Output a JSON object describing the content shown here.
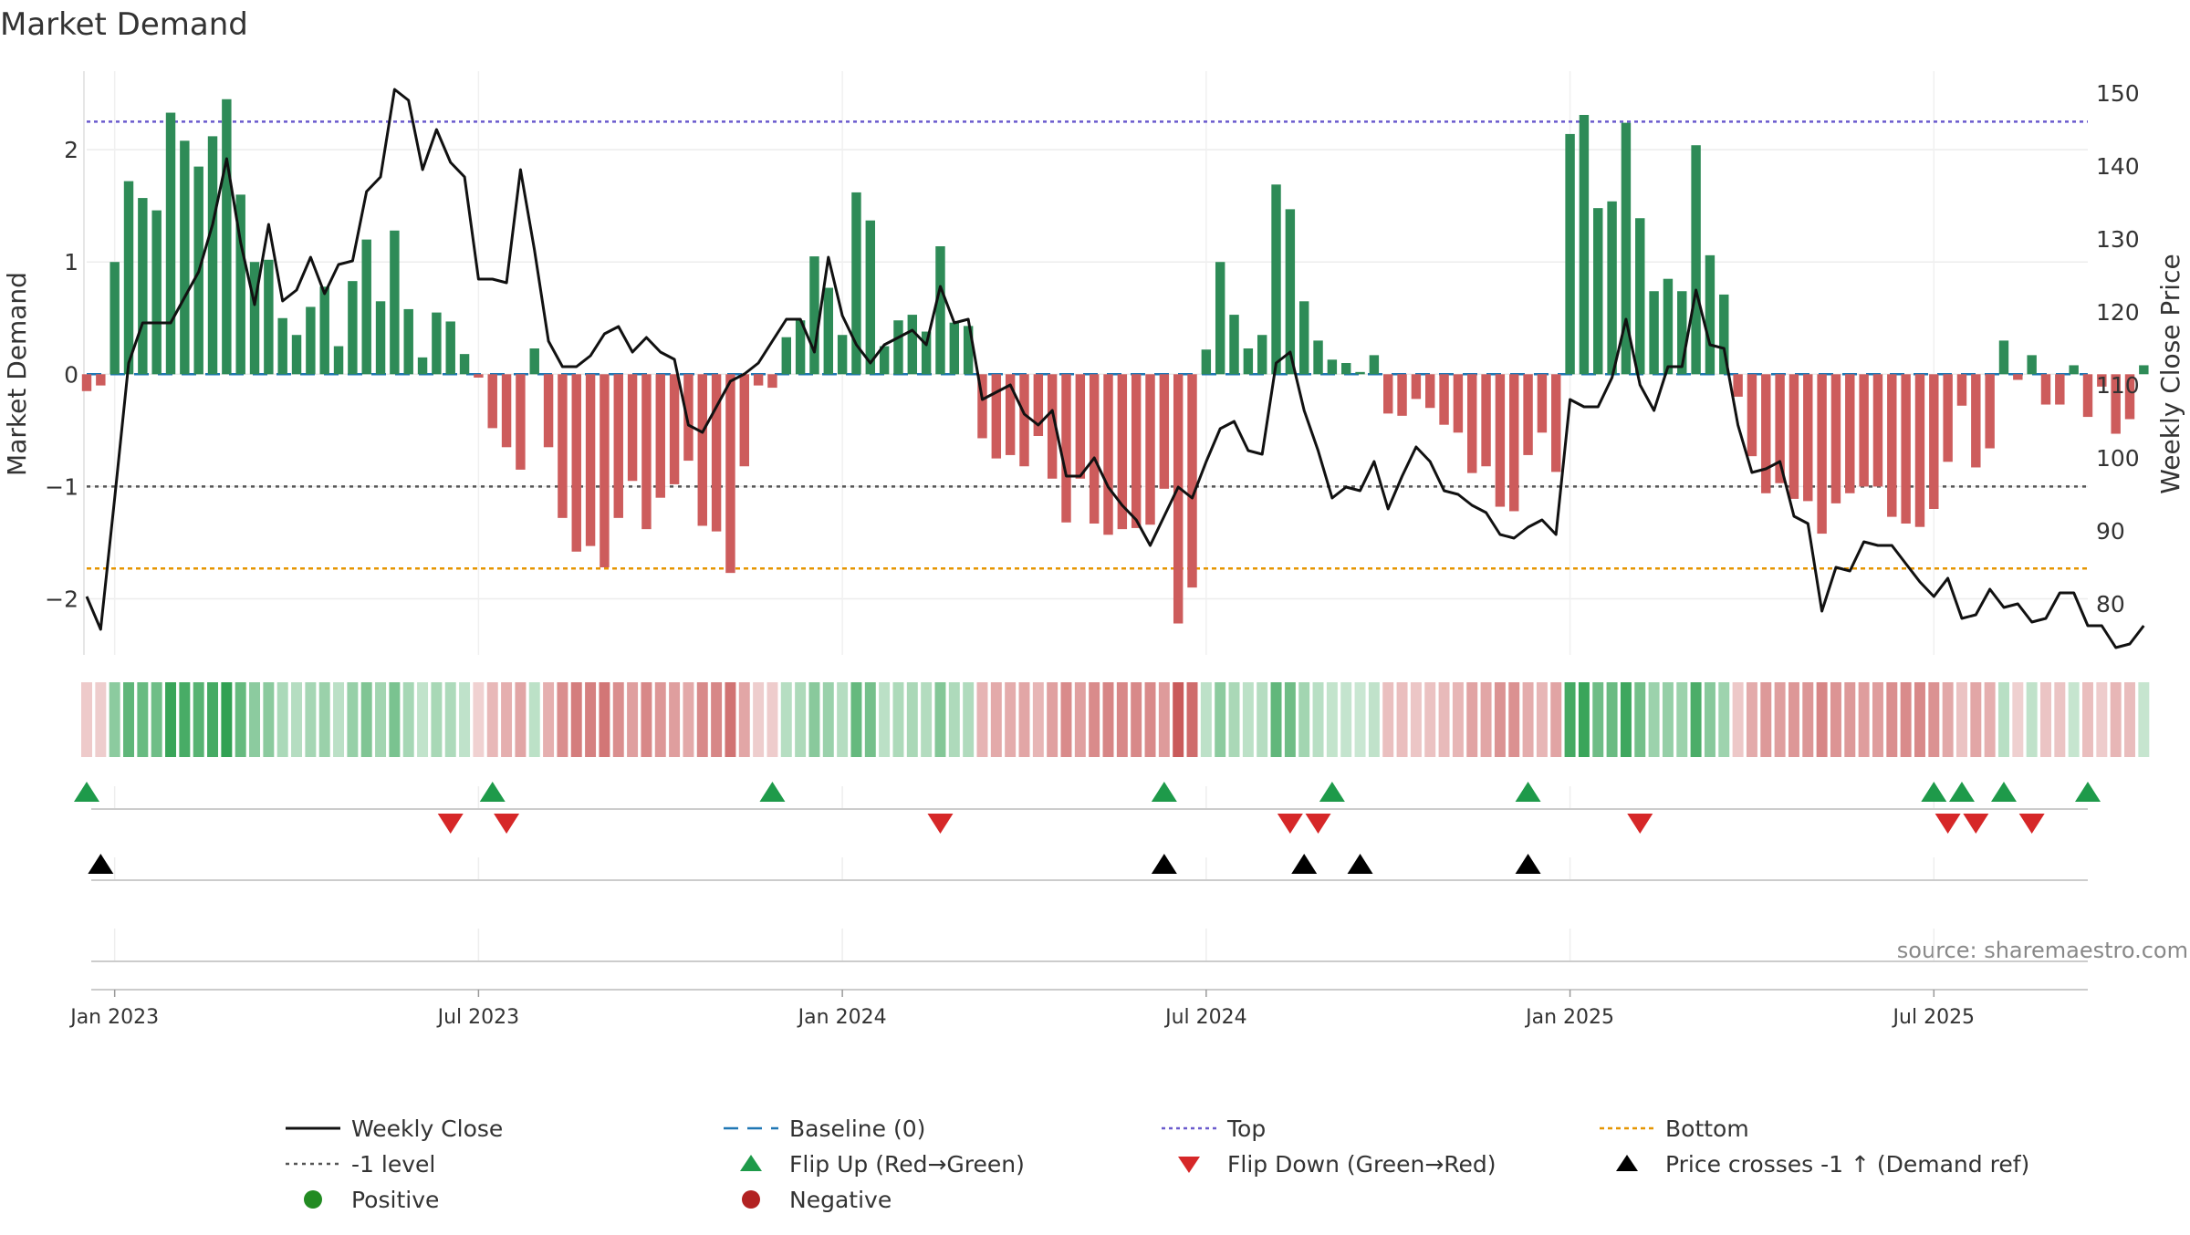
{
  "chart_data": {
    "type": "bar",
    "title": "Market Demand",
    "ylabel_left": "Market Demand",
    "ylabel_right": "Weekly Close Price",
    "source": "source: sharemaestro.com",
    "ylim_left": [
      -2.5,
      2.7
    ],
    "ylim_right": [
      73,
      153
    ],
    "yticks_left": [
      -2,
      -1,
      0,
      1,
      2
    ],
    "yticks_left_labels": [
      "−2",
      "−1",
      "0",
      "1",
      "2"
    ],
    "yticks_right": [
      80,
      90,
      100,
      110,
      120,
      130,
      140,
      150
    ],
    "x_tick_weeks": [
      1,
      27,
      53,
      79,
      105,
      131
    ],
    "x_tick_labels": [
      "Jan 2023",
      "Jul 2023",
      "Jan 2024",
      "Jul 2024",
      "Jan 2025",
      "Jul 2025"
    ],
    "start_week": -1,
    "end_week": 142,
    "reference_lines": {
      "top": 2.25,
      "bottom": -1.73,
      "level": -1,
      "baseline": 0
    },
    "demand": [
      -0.15,
      -0.1,
      1.0,
      1.72,
      1.57,
      1.46,
      2.33,
      2.08,
      1.85,
      2.12,
      2.45,
      1.6,
      1.0,
      1.02,
      0.5,
      0.35,
      0.6,
      0.78,
      0.25,
      0.83,
      1.2,
      0.65,
      1.28,
      0.58,
      0.15,
      0.55,
      0.47,
      0.18,
      -0.03,
      -0.48,
      -0.65,
      -0.85,
      0.23,
      -0.65,
      -1.28,
      -1.58,
      -1.53,
      -1.72,
      -1.28,
      -0.95,
      -1.38,
      -1.1,
      -0.98,
      -0.77,
      -1.35,
      -1.4,
      -1.77,
      -0.82,
      -0.1,
      -0.12,
      0.33,
      0.48,
      1.05,
      0.77,
      0.35,
      1.62,
      1.37,
      0.25,
      0.48,
      0.53,
      0.38,
      1.14,
      0.46,
      0.43,
      -0.57,
      -0.75,
      -0.72,
      -0.82,
      -0.55,
      -0.93,
      -1.32,
      -0.93,
      -1.33,
      -1.43,
      -1.38,
      -1.37,
      -1.34,
      -1.02,
      -2.22,
      -1.9,
      0.22,
      1.0,
      0.53,
      0.23,
      0.35,
      1.69,
      1.47,
      0.65,
      0.3,
      0.13,
      0.1,
      0.02,
      0.17,
      -0.35,
      -0.37,
      -0.22,
      -0.3,
      -0.45,
      -0.52,
      -0.88,
      -0.82,
      -1.18,
      -1.22,
      -0.72,
      -0.52,
      -0.87,
      2.14,
      2.31,
      1.48,
      1.54,
      2.24,
      1.39,
      0.74,
      0.85,
      0.74,
      2.04,
      1.06,
      0.71,
      -0.2,
      -0.73,
      -1.06,
      -0.97,
      -1.11,
      -1.13,
      -1.42,
      -1.15,
      -1.06,
      -1.0,
      -1.0,
      -1.27,
      -1.33,
      -1.36,
      -1.2,
      -0.78,
      -0.28,
      -0.83,
      -0.66,
      0.3,
      -0.05,
      0.17,
      -0.27,
      -0.27,
      0.08,
      -0.38,
      -0.11,
      -0.53,
      -0.4,
      0.08
    ],
    "price": [
      81,
      76.5,
      94.5,
      113,
      118.5,
      118.5,
      118.5,
      122,
      125.5,
      132,
      141,
      129.5,
      121,
      132,
      121.5,
      123,
      127.5,
      122.5,
      126.5,
      127,
      136.5,
      138.5,
      150.5,
      149,
      139.5,
      145,
      140.5,
      138.5,
      124.5,
      124.5,
      124,
      139.5,
      128.5,
      116,
      112.5,
      112.5,
      114,
      117,
      118,
      114.5,
      116.5,
      114.5,
      113.5,
      104.5,
      103.5,
      107,
      110.5,
      111.5,
      113,
      116,
      119,
      119,
      114.5,
      127.5,
      119.5,
      115.5,
      113,
      115.5,
      116.5,
      117.5,
      115.5,
      123.5,
      118.5,
      119,
      108,
      109,
      110,
      106,
      104.5,
      106.5,
      97.5,
      97.5,
      100,
      96,
      93.5,
      91.5,
      88,
      92,
      96,
      94.5,
      99.5,
      104,
      105,
      101,
      100.5,
      113,
      114.5,
      106.5,
      101,
      94.5,
      96,
      95.5,
      99.5,
      93,
      97.5,
      101.5,
      99.5,
      95.5,
      95,
      93.5,
      92.5,
      89.5,
      89,
      90.5,
      91.5,
      89.5,
      108,
      107,
      107,
      111,
      119,
      110,
      106.5,
      112.5,
      112.5,
      123,
      115.5,
      115,
      104.5,
      98,
      98.5,
      99.5,
      92,
      91,
      79,
      85,
      84.5,
      88.5,
      88,
      88,
      85.5,
      83,
      81,
      83.5,
      78,
      78.5,
      82,
      79.5,
      80,
      77.5,
      78,
      81.5,
      81.5,
      77,
      77,
      74,
      74.5,
      77
    ],
    "flip_up_weeks": [
      -1,
      28,
      48,
      76,
      88,
      102,
      131,
      133,
      136,
      142
    ],
    "flip_down_weeks": [
      25,
      29,
      60,
      85,
      87,
      110,
      132,
      134,
      138
    ],
    "price_cross_weeks": [
      0,
      76,
      86,
      90,
      102
    ],
    "colors": {
      "positive_bar": "#2e8b57",
      "negative_bar": "#cd5c5c",
      "line": "#111111",
      "baseline": "#1f77b4",
      "top": "#6a5acd",
      "bottom": "#e69500",
      "level": "#555555",
      "flip_up": "#1e9a4a",
      "flip_down": "#d62728",
      "cross": "#000000"
    },
    "legend": [
      {
        "label": "Weekly Close",
        "kind": "line"
      },
      {
        "label": "Baseline (0)",
        "kind": "baseline"
      },
      {
        "label": "Top",
        "kind": "top"
      },
      {
        "label": "Bottom",
        "kind": "bottom"
      },
      {
        "label": "-1 level",
        "kind": "level"
      },
      {
        "label": "Flip Up (Red→Green)",
        "kind": "flip_up"
      },
      {
        "label": "Flip Down (Green→Red)",
        "kind": "flip_down"
      },
      {
        "label": "Price crosses -1 ↑ (Demand ref)",
        "kind": "cross"
      },
      {
        "label": "Positive",
        "kind": "positive"
      },
      {
        "label": "Negative",
        "kind": "negative"
      }
    ]
  }
}
